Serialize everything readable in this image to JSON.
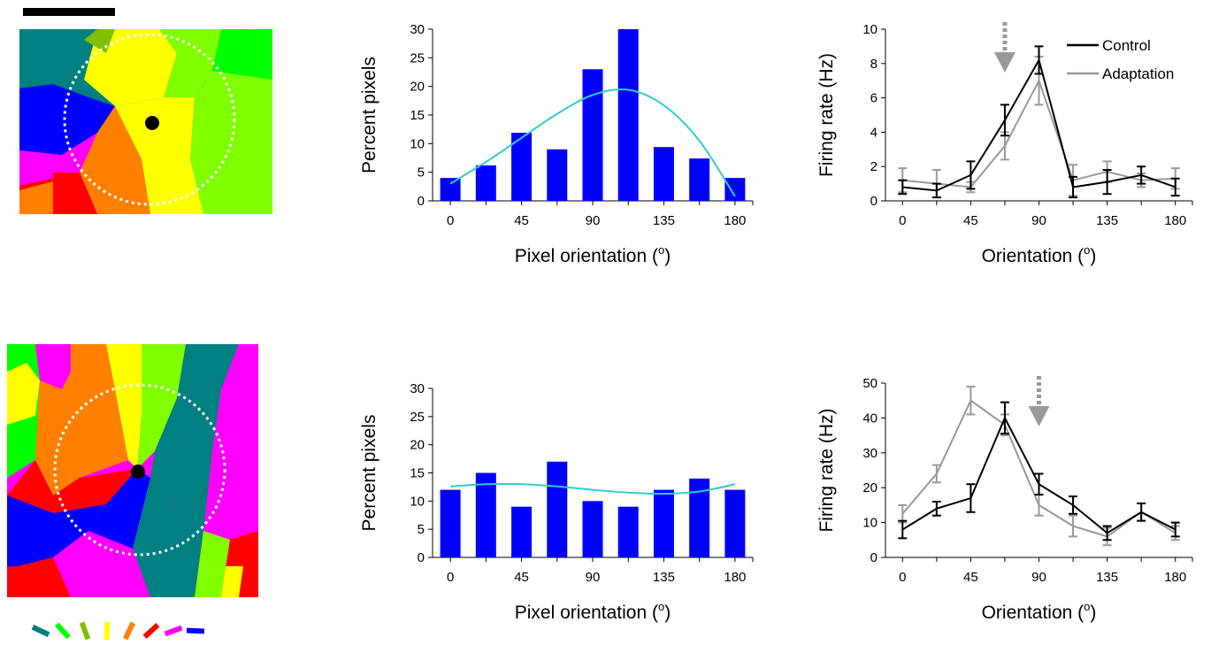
{
  "colors": {
    "bar": "#0000ff",
    "fit": "#33cccc",
    "control": "#000000",
    "adaptation": "#999999",
    "arrow": "#999999",
    "map_palette": [
      "#008080",
      "#00ff00",
      "#80c000",
      "#ffff00",
      "#ff8000",
      "#ff0000",
      "#ff00ff",
      "#0000ff"
    ]
  },
  "orientation_key": {
    "angles": [
      0,
      22.5,
      45,
      67.5,
      90,
      112.5,
      135,
      157.5
    ],
    "colors": [
      "#008080",
      "#00ff00",
      "#80c000",
      "#ffff00",
      "#ff8000",
      "#ff0000",
      "#ff00ff",
      "#0000ff"
    ]
  },
  "panels": {
    "top_map": {
      "icon": "orientation-map-top",
      "scale_bar": true
    },
    "bottom_map": {
      "icon": "orientation-map-bottom",
      "scale_bar": false
    }
  },
  "chart_data": [
    {
      "id": "hist_top",
      "type": "bar",
      "x": [
        0,
        22.5,
        45,
        67.5,
        90,
        112.5,
        135,
        157.5,
        180
      ],
      "values": [
        4,
        6.2,
        11.9,
        9,
        23,
        30,
        9.4,
        7.4,
        4
      ],
      "fit_curve": [
        [
          0,
          3
        ],
        [
          22.5,
          6.8
        ],
        [
          45,
          11
        ],
        [
          67.5,
          15.2
        ],
        [
          90,
          18.5
        ],
        [
          112.5,
          19.4
        ],
        [
          135,
          16.7
        ],
        [
          157.5,
          10.5
        ],
        [
          180,
          0.8
        ]
      ],
      "xlabel": "Pixel orientation (",
      "xlabel_sup": "o",
      "xlabel_end": ")",
      "ylabel": "Percent pixels",
      "xlim": [
        -11.25,
        191.25
      ],
      "ylim": [
        0,
        30
      ],
      "yticks": [
        0,
        5,
        10,
        15,
        20,
        25,
        30
      ],
      "xtick_labels": [
        "0",
        "45",
        "90",
        "135",
        "180"
      ]
    },
    {
      "id": "tuning_top",
      "type": "line",
      "x": [
        0,
        22.5,
        45,
        67.5,
        90,
        112.5,
        135,
        157.5,
        180
      ],
      "series": [
        {
          "name": "Control",
          "values": [
            0.8,
            0.6,
            1.5,
            4.7,
            8.2,
            0.8,
            1.1,
            1.5,
            0.8
          ],
          "errors": [
            0.4,
            0.4,
            0.8,
            0.9,
            0.8,
            0.6,
            0.7,
            0.5,
            0.5
          ]
        },
        {
          "name": "Adaptation",
          "values": [
            1.2,
            1.0,
            0.8,
            3.2,
            7.0,
            1.2,
            1.7,
            1.2,
            1.3
          ],
          "errors": [
            0.7,
            0.8,
            0.3,
            0.8,
            1.4,
            0.9,
            0.6,
            0.4,
            0.6
          ]
        }
      ],
      "adapt_arrow_x": 67.5,
      "xlabel": "Orientation (",
      "xlabel_sup": "o",
      "xlabel_end": ")",
      "ylabel": "Firing rate (Hz)",
      "xlim": [
        -11.25,
        191.25
      ],
      "ylim": [
        0,
        10
      ],
      "yticks": [
        0,
        2,
        4,
        6,
        8,
        10
      ],
      "xtick_labels": [
        "0",
        "45",
        "90",
        "135",
        "180"
      ],
      "legend": "top-right"
    },
    {
      "id": "hist_bottom",
      "type": "bar",
      "x": [
        0,
        22.5,
        45,
        67.5,
        90,
        112.5,
        135,
        157.5,
        180
      ],
      "values": [
        12,
        15,
        9,
        17,
        10,
        9,
        12,
        14,
        12
      ],
      "fit_curve": [
        [
          0,
          12.6
        ],
        [
          22.5,
          13
        ],
        [
          45,
          13
        ],
        [
          67.5,
          12.6
        ],
        [
          90,
          12
        ],
        [
          112.5,
          11.5
        ],
        [
          135,
          11.3
        ],
        [
          157.5,
          11.7
        ],
        [
          180,
          13
        ]
      ],
      "xlabel": "Pixel orientation (",
      "xlabel_sup": "o",
      "xlabel_end": ")",
      "ylabel": "Percent pixels",
      "xlim": [
        -11.25,
        191.25
      ],
      "ylim": [
        0,
        30
      ],
      "yticks": [
        0,
        5,
        10,
        15,
        20,
        25,
        30
      ],
      "xtick_labels": [
        "0",
        "45",
        "90",
        "135",
        "180"
      ]
    },
    {
      "id": "tuning_bottom",
      "type": "line",
      "x": [
        0,
        22.5,
        45,
        67.5,
        90,
        112.5,
        135,
        157.5,
        180
      ],
      "series": [
        {
          "name": "Control",
          "values": [
            8,
            14,
            17,
            40,
            21,
            15,
            7,
            13,
            8
          ],
          "errors": [
            2.5,
            2,
            4,
            4.5,
            3,
            2.5,
            2,
            2.5,
            2
          ]
        },
        {
          "name": "Adaptation",
          "values": [
            12.5,
            24,
            45,
            38,
            15,
            9,
            6,
            13,
            7
          ],
          "errors": [
            2.5,
            2.5,
            4,
            3,
            3,
            3,
            2.5,
            2.5,
            2
          ]
        }
      ],
      "adapt_arrow_x": 90,
      "xlabel": "Orientation (",
      "xlabel_sup": "o",
      "xlabel_end": ")",
      "ylabel": "Firing rate (Hz)",
      "xlim": [
        -11.25,
        191.25
      ],
      "ylim": [
        0,
        50
      ],
      "yticks": [
        0,
        10,
        20,
        30,
        40,
        50
      ],
      "xtick_labels": [
        "0",
        "45",
        "90",
        "135",
        "180"
      ]
    }
  ]
}
